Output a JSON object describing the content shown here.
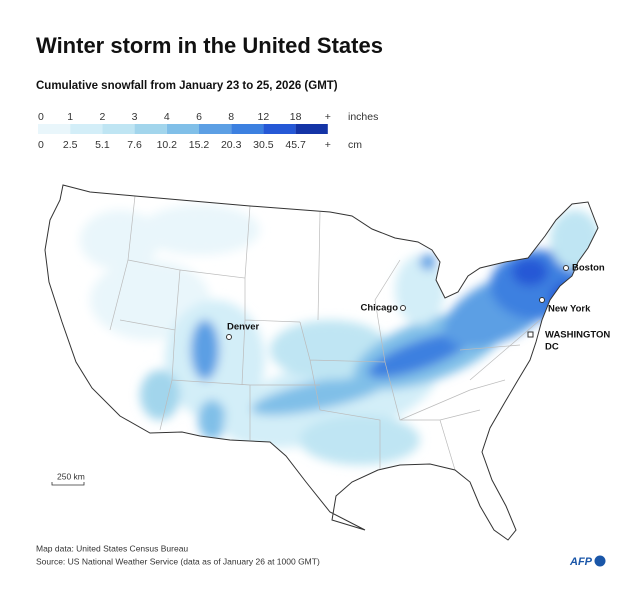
{
  "header": {
    "title": "Winter storm in the United States",
    "subtitle": "Cumulative snowfall from January 23 to 25, 2026 (GMT)"
  },
  "legend": {
    "inches": {
      "unit": "inches",
      "ticks": [
        0,
        1,
        2,
        3,
        4,
        6,
        8,
        12,
        18,
        "+"
      ]
    },
    "cm": {
      "unit": "cm",
      "ticks": [
        0,
        2.5,
        5.1,
        7.6,
        10.2,
        15.2,
        20.3,
        30.5,
        45.7,
        "+"
      ]
    },
    "colors": [
      "#e9f6fb",
      "#d3eef8",
      "#bfe5f3",
      "#a2d5ec",
      "#80bfe8",
      "#5c9fe4",
      "#3c80e0",
      "#2558d6",
      "#1434a6"
    ]
  },
  "map": {
    "cities": [
      "Boston",
      "New York",
      "Chicago",
      "Denver",
      "WASHINGTON",
      "DC"
    ],
    "scale": "250 km"
  },
  "footer": {
    "map_data": "Map data: United States Census Bureau",
    "source": "Source: US National Weather Service (data as of January 26 at 1000 GMT)",
    "logo": "AFP"
  }
}
